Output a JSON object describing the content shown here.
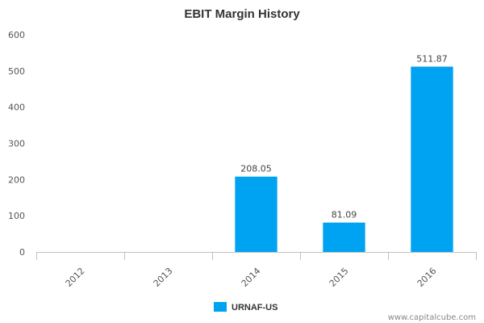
{
  "chart_data": {
    "type": "bar",
    "title": "EBIT Margin History",
    "categories": [
      "2012",
      "2013",
      "2014",
      "2015",
      "2016"
    ],
    "series": [
      {
        "name": "URNAF-US",
        "values": [
          null,
          null,
          208.05,
          81.09,
          511.87
        ],
        "color": "#00a2f2"
      }
    ],
    "data_labels": [
      "",
      "",
      "208.05",
      "81.09",
      "511.87"
    ],
    "y_ticks": [
      "0",
      "100",
      "200",
      "300",
      "400",
      "500",
      "600"
    ],
    "ylim": [
      0,
      600
    ],
    "grid": false,
    "legend_position": "bottom"
  },
  "credit": "www.capitalcube.com",
  "colors": {
    "axis": "#c0c0c0",
    "bar": "#00a2f2"
  }
}
